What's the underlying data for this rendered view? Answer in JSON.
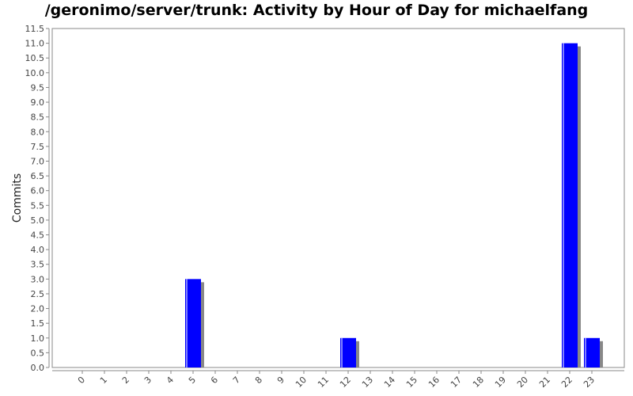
{
  "chart_data": {
    "type": "bar",
    "title": "/geronimo/server/trunk: Activity by Hour of Day for michaelfang",
    "xlabel": "",
    "ylabel": "Commits",
    "ylim": [
      0,
      11.5
    ],
    "yticks": [
      "0.0",
      "0.5",
      "1.0",
      "1.5",
      "2.0",
      "2.5",
      "3.0",
      "3.5",
      "4.0",
      "4.5",
      "5.0",
      "5.5",
      "6.0",
      "6.5",
      "7.0",
      "7.5",
      "8.0",
      "8.5",
      "9.0",
      "9.5",
      "10.0",
      "10.5",
      "11.0",
      "11.5"
    ],
    "categories": [
      "0",
      "1",
      "2",
      "3",
      "4",
      "5",
      "6",
      "7",
      "8",
      "9",
      "10",
      "11",
      "12",
      "13",
      "14",
      "15",
      "16",
      "17",
      "18",
      "19",
      "20",
      "21",
      "22",
      "23"
    ],
    "values": [
      0,
      0,
      0,
      0,
      0,
      3,
      0,
      0,
      0,
      0,
      0,
      0,
      1,
      0,
      0,
      0,
      0,
      0,
      0,
      0,
      0,
      0,
      11,
      1
    ],
    "grid": false,
    "legend": "none",
    "colors": {
      "bar": "#0000ff",
      "shadow": "#888888",
      "axis": "#888888"
    }
  }
}
